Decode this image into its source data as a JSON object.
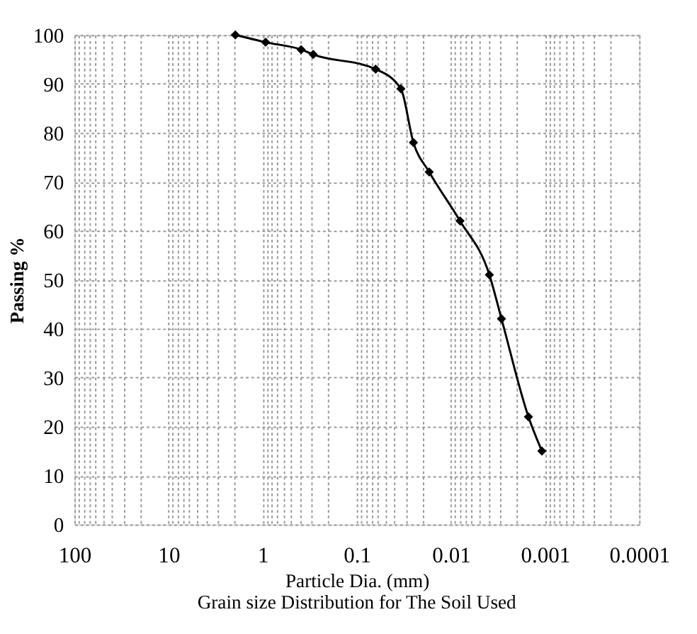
{
  "chart_data": {
    "type": "line",
    "title": "Grain size Distribution for The Soil Used",
    "xlabel": "Particle Dia. (mm)",
    "ylabel": "Passing %",
    "x": [
      1.95,
      0.93,
      0.39,
      0.29,
      0.063,
      0.034,
      0.025,
      0.017,
      0.008,
      0.0039,
      0.0029,
      0.0015,
      0.00108
    ],
    "series": [
      {
        "color": "#000000",
        "values": [
          100,
          98.5,
          97,
          96,
          93,
          89,
          78,
          72,
          62,
          51,
          42,
          22,
          15
        ]
      }
    ],
    "log": "x",
    "marker": "diamond",
    "line_style": "solid",
    "grid": true,
    "xlim": [
      100,
      0.0001
    ],
    "ylim": [
      0,
      100
    ],
    "xticks": [
      100,
      {
        "value": 90,
        "label": null
      },
      {
        "value": 80,
        "label": null
      },
      {
        "value": 70,
        "label": null
      },
      {
        "value": 60,
        "label": null
      },
      {
        "value": 50,
        "label": null
      },
      {
        "value": 40,
        "label": null
      },
      {
        "value": 30,
        "label": null
      },
      {
        "value": 20,
        "label": null
      },
      10,
      {
        "value": 9,
        "label": null
      },
      {
        "value": 8,
        "label": null
      },
      {
        "value": 7,
        "label": null
      },
      {
        "value": 6,
        "label": null
      },
      {
        "value": 5,
        "label": null
      },
      {
        "value": 4,
        "label": null
      },
      {
        "value": 3,
        "label": null
      },
      {
        "value": 2,
        "label": null
      },
      1,
      {
        "value": 0.9,
        "label": null
      },
      {
        "value": 0.8,
        "label": null
      },
      {
        "value": 0.7,
        "label": null
      },
      {
        "value": 0.6,
        "label": null
      },
      {
        "value": 0.5,
        "label": null
      },
      {
        "value": 0.4,
        "label": null
      },
      {
        "value": 0.3,
        "label": null
      },
      {
        "value": 0.2,
        "label": null
      },
      0.1,
      {
        "value": 0.09,
        "label": null
      },
      {
        "value": 0.08,
        "label": null
      },
      {
        "value": 0.07,
        "label": null
      },
      {
        "value": 0.06,
        "label": null
      },
      {
        "value": 0.05,
        "label": null
      },
      {
        "value": 0.04,
        "label": null
      },
      {
        "value": 0.03,
        "label": null
      },
      {
        "value": 0.02,
        "label": null
      },
      0.01,
      {
        "value": 0.009,
        "label": null
      },
      {
        "value": 0.008,
        "label": null
      },
      {
        "value": 0.007,
        "label": null
      },
      {
        "value": 0.006,
        "label": null
      },
      {
        "value": 0.005,
        "label": null
      },
      {
        "value": 0.004,
        "label": null
      },
      {
        "value": 0.003,
        "label": null
      },
      {
        "value": 0.002,
        "label": null
      },
      0.001,
      {
        "value": 0.0009,
        "label": null
      },
      {
        "value": 0.0008,
        "label": null
      },
      {
        "value": 0.0007,
        "label": null
      },
      {
        "value": 0.0006,
        "label": null
      },
      {
        "value": 0.0005,
        "label": null
      },
      {
        "value": 0.0004,
        "label": null
      },
      {
        "value": 0.0003,
        "label": null
      },
      {
        "value": 0.0002,
        "label": null
      },
      0.0001
    ],
    "yticks": [
      0,
      10,
      20,
      30,
      40,
      50,
      60,
      70,
      80,
      90,
      100
    ]
  }
}
